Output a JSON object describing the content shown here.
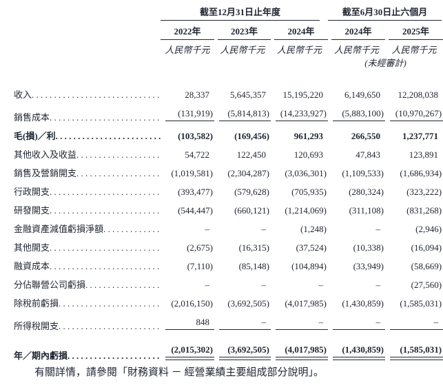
{
  "table": {
    "column_groups": [
      {
        "label": "截至12月31日止年度"
      },
      {
        "label": "截至6月30日止六個月"
      }
    ],
    "column_headers": [
      "2022年",
      "2023年",
      "2024年",
      "2024年",
      "2025年"
    ],
    "unit_label": "人民幣千元",
    "unaudited_note": "(未經審計)",
    "rows": [
      {
        "label": "收入",
        "values": [
          "28,337",
          "5,645,357",
          "15,195,220",
          "6,149,650",
          "12,208,038"
        ]
      },
      {
        "label": "銷售成本",
        "values": [
          "(131,919)",
          "(5,814,813)",
          "(14,233,927)",
          "(5,883,100)",
          "(10,970,267)"
        ]
      },
      {
        "label": "毛(損)／利",
        "values": [
          "(103,582)",
          "(169,456)",
          "961,293",
          "266,550",
          "1,237,771"
        ]
      },
      {
        "label": "其他收入及收益",
        "values": [
          "54,722",
          "122,450",
          "120,693",
          "47,843",
          "123,891"
        ]
      },
      {
        "label": "銷售及營銷開支",
        "values": [
          "(1,019,581)",
          "(2,304,287)",
          "(3,036,301)",
          "(1,109,533)",
          "(1,686,934)"
        ]
      },
      {
        "label": "行政開支",
        "values": [
          "(393,477)",
          "(579,628)",
          "(705,935)",
          "(280,324)",
          "(323,222)"
        ]
      },
      {
        "label": "研發開支",
        "values": [
          "(544,447)",
          "(660,121)",
          "(1,214,069)",
          "(311,108)",
          "(831,268)"
        ]
      },
      {
        "label": "金融資產減值虧損淨額",
        "values": [
          "–",
          "–",
          "(1,248)",
          "–",
          "(2,946)"
        ]
      },
      {
        "label": "其他開支",
        "values": [
          "(2,675)",
          "(16,315)",
          "(37,524)",
          "(10,338)",
          "(16,094)"
        ]
      },
      {
        "label": "融資成本",
        "values": [
          "(7,110)",
          "(85,148)",
          "(104,894)",
          "(33,949)",
          "(58,669)"
        ]
      },
      {
        "label": "分佔聯營公司虧損",
        "values": [
          "–",
          "–",
          "–",
          "–",
          "(27,560)"
        ]
      },
      {
        "label": "除稅前虧損",
        "values": [
          "(2,016,150)",
          "(3,692,505)",
          "(4,017,985)",
          "(1,430,859)",
          "(1,585,031)"
        ]
      },
      {
        "label": "所得稅開支",
        "values": [
          "848",
          "–",
          "–",
          "–",
          "–"
        ]
      },
      {
        "label": "年／期內虧損",
        "values": [
          "(2,015,302)",
          "(3,692,505)",
          "(4,017,985)",
          "(1,430,859)",
          "(1,585,031)"
        ]
      }
    ]
  },
  "footer": {
    "note": "有關詳情，請參閱「財務資料 － 經營業績主要組成部分說明」。"
  },
  "colors": {
    "text": "#1d2330",
    "rule": "#20242e",
    "background": "#ffffff"
  }
}
